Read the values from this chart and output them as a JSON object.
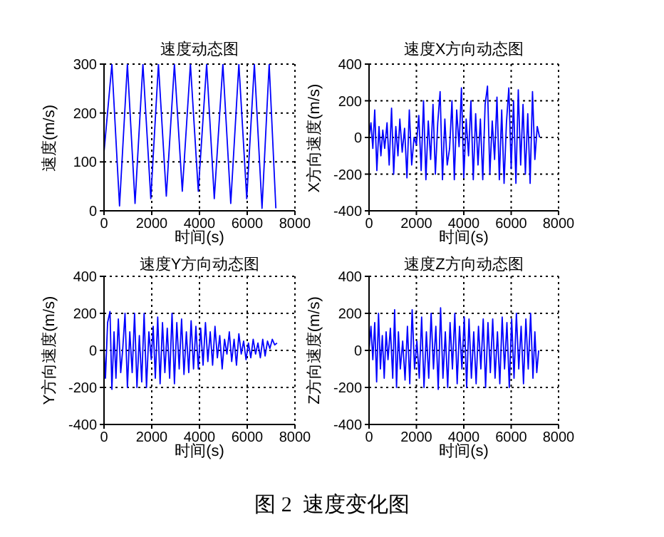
{
  "chart_data": [
    {
      "type": "line",
      "title": "速度动态图",
      "xlabel": "时间(s)",
      "ylabel": "速度(m/s)",
      "xlim": [
        0,
        8000
      ],
      "xticks": [
        0,
        2000,
        4000,
        6000,
        8000
      ],
      "ylim": [
        0,
        300
      ],
      "yticks": [
        0,
        100,
        200,
        300
      ],
      "grid": true,
      "line_style": "solid",
      "series": [
        {
          "color": "#0000ff",
          "x": [
            0,
            330,
            650,
            980,
            1300,
            1630,
            1960,
            2280,
            2610,
            2950,
            3280,
            3620,
            3950,
            4300,
            4620,
            4980,
            5310,
            5650,
            5980,
            6300,
            6620,
            6920,
            7200
          ],
          "values": [
            120,
            300,
            10,
            300,
            15,
            300,
            25,
            300,
            30,
            300,
            40,
            300,
            40,
            300,
            25,
            300,
            15,
            300,
            25,
            300,
            5,
            300,
            5
          ]
        }
      ]
    },
    {
      "type": "line",
      "title": "速度X方向动态图",
      "xlabel": "时间(s)",
      "ylabel": "X方向速度(m/s)",
      "xlim": [
        0,
        8000
      ],
      "xticks": [
        0,
        2000,
        4000,
        6000,
        8000
      ],
      "ylim": [
        -400,
        400
      ],
      "yticks": [
        -400,
        -200,
        0,
        200,
        400
      ],
      "grid": true,
      "line_style": "solid",
      "series": [
        {
          "color": "#0000ff",
          "x": [
            0,
            80,
            160,
            240,
            330,
            420,
            500,
            580,
            660,
            760,
            850,
            950,
            1040,
            1130,
            1220,
            1300,
            1400,
            1500,
            1600,
            1700,
            1800,
            1900,
            2000,
            2100,
            2200,
            2300,
            2400,
            2500,
            2600,
            2700,
            2800,
            2900,
            3000,
            3100,
            3200,
            3300,
            3400,
            3500,
            3600,
            3700,
            3800,
            3900,
            4000,
            4100,
            4200,
            4300,
            4400,
            4500,
            4600,
            4700,
            4800,
            4900,
            5000,
            5100,
            5200,
            5300,
            5400,
            5500,
            5600,
            5700,
            5800,
            5900,
            6000,
            6100,
            6200,
            6300,
            6400,
            6500,
            6600,
            6700,
            6800,
            6900,
            7000,
            7100,
            7200
          ],
          "values": [
            0,
            80,
            -60,
            150,
            -180,
            60,
            -100,
            40,
            -60,
            80,
            -150,
            160,
            -200,
            60,
            -100,
            100,
            -80,
            50,
            -220,
            150,
            -150,
            0,
            -40,
            120,
            -180,
            200,
            -230,
            90,
            -120,
            180,
            -200,
            80,
            250,
            -230,
            100,
            -150,
            -60,
            200,
            -230,
            150,
            -50,
            270,
            -220,
            100,
            -100,
            200,
            -230,
            130,
            -150,
            100,
            -230,
            180,
            280,
            -200,
            90,
            -120,
            220,
            -230,
            150,
            -250,
            80,
            270,
            -170,
            200,
            -250,
            260,
            -150,
            180,
            -200,
            130,
            -250,
            250,
            -120,
            60,
            0
          ]
        }
      ]
    },
    {
      "type": "line",
      "title": "速度Y方向动态图",
      "xlabel": "时间(s)",
      "ylabel": "Y方向速度(m/s)",
      "xlim": [
        0,
        8000
      ],
      "xticks": [
        0,
        2000,
        4000,
        6000,
        8000
      ],
      "ylim": [
        -400,
        400
      ],
      "yticks": [
        -400,
        -200,
        0,
        200,
        400
      ],
      "grid": true,
      "line_style": "solid",
      "series": [
        {
          "color": "#0000ff",
          "x": [
            0,
            60,
            150,
            250,
            330,
            420,
            500,
            600,
            700,
            780,
            880,
            980,
            1080,
            1180,
            1280,
            1380,
            1480,
            1580,
            1680,
            1780,
            1880,
            1980,
            2060,
            2150,
            2250,
            2350,
            2450,
            2550,
            2650,
            2750,
            2850,
            2950,
            3050,
            3150,
            3250,
            3350,
            3450,
            3550,
            3650,
            3750,
            3850,
            3950,
            4050,
            4150,
            4250,
            4350,
            4450,
            4550,
            4650,
            4750,
            4850,
            4950,
            5050,
            5150,
            5250,
            5350,
            5450,
            5550,
            5650,
            5750,
            5850,
            5950,
            6050,
            6150,
            6250,
            6350,
            6450,
            6550,
            6650,
            6750,
            6850,
            6950,
            7050,
            7150,
            7250
          ],
          "values": [
            0,
            -150,
            150,
            210,
            -210,
            100,
            -150,
            170,
            -120,
            0,
            200,
            -200,
            100,
            -120,
            200,
            -200,
            80,
            -170,
            200,
            -200,
            100,
            -50,
            130,
            -150,
            180,
            -180,
            150,
            -120,
            120,
            -150,
            200,
            -180,
            150,
            -100,
            170,
            -130,
            100,
            -120,
            160,
            -100,
            130,
            -100,
            120,
            -80,
            150,
            -60,
            100,
            -80,
            130,
            -40,
            80,
            -100,
            60,
            -20,
            100,
            -60,
            60,
            -80,
            90,
            -20,
            50,
            -50,
            40,
            -40,
            60,
            -20,
            40,
            -40,
            60,
            -30,
            50,
            10,
            60,
            30,
            40
          ]
        }
      ]
    },
    {
      "type": "line",
      "title": "速度Z方向动态图",
      "xlabel": "时间(s)",
      "ylabel": "Z方向速度(m/s)",
      "xlim": [
        0,
        8000
      ],
      "xticks": [
        0,
        2000,
        4000,
        6000,
        8000
      ],
      "ylim": [
        -400,
        400
      ],
      "yticks": [
        -400,
        -200,
        0,
        200,
        400
      ],
      "grid": true,
      "line_style": "solid",
      "annotations": [
        "图 2  速度变化图"
      ],
      "series": [
        {
          "color": "#0000ff",
          "x": [
            0,
            80,
            160,
            240,
            320,
            400,
            480,
            560,
            640,
            720,
            800,
            900,
            1000,
            1080,
            1160,
            1240,
            1320,
            1420,
            1520,
            1620,
            1720,
            1820,
            1920,
            2020,
            2120,
            2220,
            2320,
            2420,
            2520,
            2620,
            2720,
            2820,
            2920,
            3020,
            3120,
            3220,
            3320,
            3420,
            3520,
            3620,
            3720,
            3820,
            3920,
            4020,
            4120,
            4220,
            4320,
            4420,
            4520,
            4620,
            4720,
            4820,
            4920,
            5020,
            5120,
            5220,
            5320,
            5420,
            5520,
            5620,
            5720,
            5820,
            5920,
            6020,
            6120,
            6220,
            6320,
            6420,
            6520,
            6620,
            6720,
            6820,
            6920,
            7000,
            7080,
            7160
          ],
          "values": [
            0,
            130,
            -50,
            150,
            -170,
            200,
            -100,
            80,
            -150,
            100,
            -50,
            120,
            -150,
            220,
            -200,
            100,
            -100,
            50,
            -160,
            130,
            -180,
            220,
            -100,
            50,
            -150,
            180,
            -200,
            100,
            -150,
            200,
            -100,
            130,
            -210,
            230,
            -150,
            100,
            -200,
            150,
            -100,
            200,
            -180,
            130,
            -100,
            180,
            -200,
            170,
            -150,
            100,
            -180,
            130,
            -100,
            170,
            -200,
            150,
            -120,
            170,
            -150,
            100,
            -180,
            180,
            -100,
            150,
            -200,
            170,
            -150,
            200,
            -100,
            130,
            -180,
            170,
            -100,
            200,
            -150,
            100,
            -120,
            0
          ]
        }
      ]
    }
  ]
}
